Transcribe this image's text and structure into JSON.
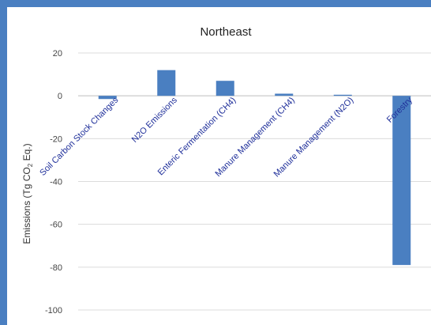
{
  "chart_data": {
    "type": "bar",
    "title": "Northeast",
    "ylabel": "Emissions (Tg CO2 Eq.)",
    "ylabel_parts": {
      "prefix": "Emissions (Tg CO",
      "subscript": "2",
      "suffix": " Eq.)"
    },
    "categories": [
      "Soil Carbon Stock Changes",
      "N2O Emissions",
      "Enteric Fermentation (CH4)",
      "Manure Management (CH4)",
      "Manure Management (N2O)",
      "Forestry"
    ],
    "values": [
      -1.5,
      12,
      7,
      1,
      0.5,
      -79
    ],
    "ylim": [
      -100,
      20
    ],
    "yticks": [
      20,
      0,
      -20,
      -40,
      -60,
      -80,
      -100
    ],
    "grid": true,
    "legend": "none",
    "bar_color": "#4a7fc1",
    "label_color": "#1f2f9a"
  }
}
